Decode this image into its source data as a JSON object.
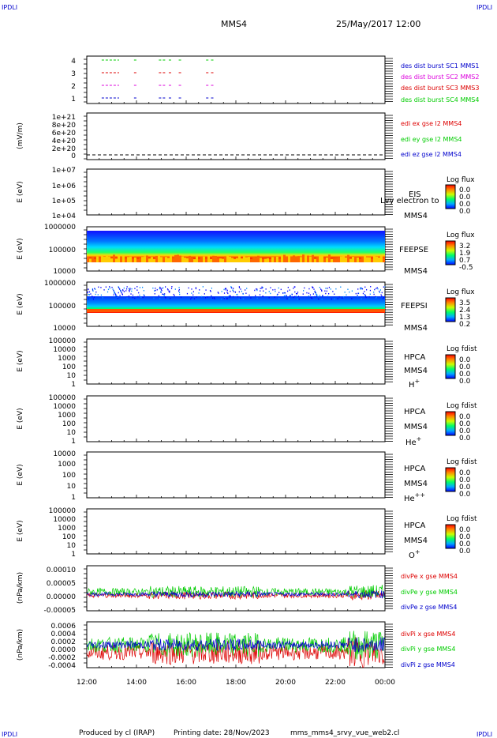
{
  "header": {
    "corner_tl": "IPDLI",
    "corner_tr": "IPDLI",
    "corner_bl": "IPDLI",
    "corner_br": "IPDLI",
    "spacecraft": "MMS4",
    "date_time": "25/May/2017 12:00"
  },
  "footer": {
    "credit": "Produced by cl (IRAP)",
    "printing_date": "Printing date: 28/Nov/2023",
    "filename": "mms_mms4_srvy_vue_web2.cl"
  },
  "time_axis": {
    "ticks": [
      "12:00",
      "14:00",
      "16:00",
      "18:00",
      "20:00",
      "22:00",
      "00:00"
    ]
  },
  "colors": {
    "blue": "#0000cc",
    "red": "#dd0000",
    "green": "#00cc00",
    "magenta": "#dd00dd"
  },
  "panels": {
    "burst": {
      "yticks": [
        "4",
        "3",
        "2",
        "1"
      ],
      "legend": [
        {
          "text": "des dist burst SC1 MMS1",
          "color": "#0000cc"
        },
        {
          "text": "des dist burst SC2 MMS2",
          "color": "#dd00dd"
        },
        {
          "text": "des dist burst SC3 MMS3",
          "color": "#dd0000"
        },
        {
          "text": "des dist burst SC4 MMS4",
          "color": "#00cc00"
        }
      ]
    },
    "efield": {
      "ylabel": "(mV/m)",
      "yticks": [
        "1e+21",
        "8e+20",
        "6e+20",
        "4e+20",
        "2e+20",
        "0"
      ],
      "legend": [
        {
          "text": "edi ex gse l2 MMS4",
          "color": "#dd0000"
        },
        {
          "text": "edi ey gse l2 MMS4",
          "color": "#00cc00"
        },
        {
          "text": "edi ez gse l2 MMS4",
          "color": "#0000cc"
        }
      ]
    },
    "eis": {
      "ylabel": "E (eV)",
      "yticks": [
        "1e+07",
        "1e+06",
        "1e+05",
        "1e+04"
      ],
      "instrument": "EIS",
      "overlay": "Lvy electron to",
      "sc": "MMS4",
      "cbar_title": "Log flux",
      "cbar_ticks": [
        "0.0",
        "0.0",
        "0.0",
        "0.0"
      ]
    },
    "feepse": {
      "ylabel": "E (eV)",
      "yticks": [
        "1000000",
        "100000",
        "10000"
      ],
      "instrument": "FEEPSE",
      "sc": "MMS4",
      "cbar_title": "Log flux",
      "cbar_ticks": [
        "3.2",
        "1.9",
        "0.7",
        "-0.5"
      ]
    },
    "feepsi": {
      "ylabel": "E (eV)",
      "yticks": [
        "1000000",
        "100000",
        "10000"
      ],
      "instrument": "FEEPSI",
      "sc": "MMS4",
      "cbar_title": "Log flux",
      "cbar_ticks": [
        "3.5",
        "2.4",
        "1.3",
        "0.2"
      ]
    },
    "hpca_h": {
      "ylabel": "E (eV)",
      "yticks": [
        "100000",
        "10000",
        "1000",
        "100",
        "10",
        "1"
      ],
      "instrument": "HPCA",
      "sc": "MMS4",
      "species": "H",
      "charge": "+",
      "cbar_title": "Log fdist",
      "cbar_ticks": [
        "0.0",
        "0.0",
        "0.0",
        "0.0"
      ]
    },
    "hpca_he1": {
      "ylabel": "E (eV)",
      "yticks": [
        "100000",
        "10000",
        "1000",
        "100",
        "10",
        "1"
      ],
      "instrument": "HPCA",
      "sc": "MMS4",
      "species": "He",
      "charge": "+",
      "cbar_title": "Log fdist",
      "cbar_ticks": [
        "0.0",
        "0.0",
        "0.0",
        "0.0"
      ]
    },
    "hpca_he2": {
      "ylabel": "E (eV)",
      "yticks": [
        "10000",
        "1000",
        "100",
        "10",
        "1"
      ],
      "instrument": "HPCA",
      "sc": "MMS4",
      "species": "He",
      "charge": "++",
      "cbar_title": "Log fdist",
      "cbar_ticks": [
        "0.0",
        "0.0",
        "0.0",
        "0.0"
      ]
    },
    "hpca_o": {
      "ylabel": "E (eV)",
      "yticks": [
        "100000",
        "10000",
        "1000",
        "100",
        "10",
        "1"
      ],
      "instrument": "HPCA",
      "sc": "MMS4",
      "species": "O",
      "charge": "+",
      "cbar_title": "Log fdist",
      "cbar_ticks": [
        "0.0",
        "0.0",
        "0.0",
        "0.0"
      ]
    },
    "divpe": {
      "ylabel": "(nPa/km)",
      "yticks": [
        "0.00010",
        "0.00005",
        "0.00000",
        "-0.00005"
      ],
      "legend": [
        {
          "text": "divPe x gse MMS4",
          "color": "#dd0000"
        },
        {
          "text": "divPe y gse MMS4",
          "color": "#00cc00"
        },
        {
          "text": "divPe z gse MMS4",
          "color": "#0000cc"
        }
      ]
    },
    "divpi": {
      "ylabel": "(nPa/km)",
      "yticks": [
        "0.0006",
        "0.0004",
        "0.0002",
        "0.0000",
        "-0.0002",
        "-0.0004"
      ],
      "legend": [
        {
          "text": "divPi x gse MMS4",
          "color": "#dd0000"
        },
        {
          "text": "divPi y gse MMS4",
          "color": "#00cc00"
        },
        {
          "text": "divPi z gse MMS4",
          "color": "#0000cc"
        }
      ]
    }
  },
  "chart_data": [
    {
      "type": "scatter",
      "panel": "burst",
      "x_range": [
        "12:00",
        "00:00"
      ],
      "ylim": [
        0.5,
        4.5
      ],
      "series": [
        {
          "name": "des dist burst SC1 MMS1",
          "y": 1,
          "intervals_hours": [
            [
              12.6,
              13.3
            ],
            [
              13.9,
              14.0
            ],
            [
              14.9,
              15.2
            ],
            [
              15.3,
              15.4
            ],
            [
              15.7,
              15.8
            ],
            [
              16.8,
              16.9
            ],
            [
              17.0,
              17.1
            ]
          ]
        },
        {
          "name": "des dist burst SC2 MMS2",
          "y": 2,
          "intervals_hours": [
            [
              12.6,
              13.3
            ],
            [
              13.9,
              14.0
            ],
            [
              14.9,
              15.2
            ],
            [
              15.3,
              15.4
            ],
            [
              15.7,
              15.8
            ],
            [
              16.8,
              16.9
            ],
            [
              17.0,
              17.1
            ]
          ]
        },
        {
          "name": "des dist burst SC3 MMS3",
          "y": 3,
          "intervals_hours": [
            [
              12.6,
              13.3
            ],
            [
              13.9,
              14.0
            ],
            [
              14.9,
              15.2
            ],
            [
              15.3,
              15.4
            ],
            [
              15.7,
              15.8
            ],
            [
              16.8,
              16.9
            ],
            [
              17.0,
              17.1
            ]
          ]
        },
        {
          "name": "des dist burst SC4 MMS4",
          "y": 4,
          "intervals_hours": [
            [
              12.6,
              13.3
            ],
            [
              13.9,
              14.0
            ],
            [
              14.9,
              15.2
            ],
            [
              15.3,
              15.4
            ],
            [
              15.7,
              15.8
            ],
            [
              16.8,
              16.9
            ],
            [
              17.0,
              17.1
            ]
          ]
        }
      ]
    },
    {
      "type": "line",
      "panel": "efield",
      "ylim": [
        0,
        1.1e+21
      ],
      "series": [
        {
          "name": "edi ez gse l2 MMS4",
          "values": [
            0,
            0
          ]
        }
      ]
    },
    {
      "type": "heatmap",
      "panel": "feepse",
      "ylim": [
        10000,
        1000000
      ],
      "log_y": true,
      "note": "flux strongest near 30-60 keV"
    },
    {
      "type": "heatmap",
      "panel": "feepsi",
      "ylim": [
        10000,
        1000000
      ],
      "log_y": true,
      "note": "flux strongest near 60 keV"
    },
    {
      "type": "line",
      "panel": "divpe",
      "ylim": [
        -7e-05,
        0.00012
      ],
      "series": [
        {
          "name": "divPe x gse MMS4",
          "mean": -5e-06,
          "amp": 1e-05
        },
        {
          "name": "divPe y gse MMS4",
          "mean": 1e-05,
          "amp": 1.5e-05
        },
        {
          "name": "divPe z gse MMS4",
          "mean": 0.0,
          "amp": 8e-06
        }
      ]
    },
    {
      "type": "line",
      "panel": "divpi",
      "ylim": [
        -0.0005,
        0.0007
      ],
      "series": [
        {
          "name": "divPi x gse MMS4",
          "mean": -0.0001,
          "amp": 0.0002
        },
        {
          "name": "divPi y gse MMS4",
          "mean": 0.0001,
          "amp": 0.0002
        },
        {
          "name": "divPi z gse MMS4",
          "mean": 0.0001,
          "amp": 0.0001
        }
      ]
    }
  ]
}
